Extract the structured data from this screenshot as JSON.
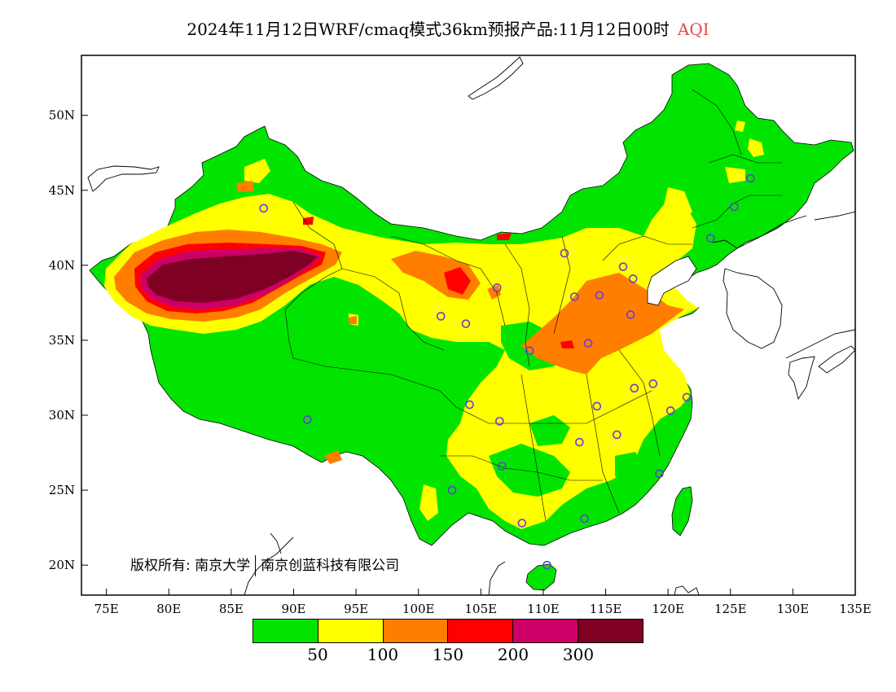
{
  "title": {
    "main": "2024年11月12日WRF/cmaq模式36km预报产品:11月12日00时",
    "variable": "AQI"
  },
  "axes": {
    "y_ticks": [
      "50N",
      "45N",
      "40N",
      "35N",
      "30N",
      "25N",
      "20N"
    ],
    "x_ticks": [
      "75E",
      "80E",
      "85E",
      "90E",
      "95E",
      "100E",
      "105E",
      "110E",
      "115E",
      "120E",
      "125E",
      "130E",
      "135E"
    ],
    "lon_range": [
      73,
      135
    ],
    "lat_range": [
      18,
      54
    ]
  },
  "copyright": {
    "prefix": "版权所有:",
    "org1": "南京大学",
    "org2": "南京创蓝科技有限公司"
  },
  "legend": {
    "colors": [
      "#00e400",
      "#ffff00",
      "#ff7e00",
      "#ff0000",
      "#cc0066",
      "#7e0023"
    ],
    "labels": [
      "50",
      "100",
      "150",
      "200",
      "300"
    ]
  },
  "colors": {
    "good": "#00e400",
    "moderate": "#ffff00",
    "usg": "#ff7e00",
    "unhealthy": "#ff0000",
    "very_unhealthy": "#cc0066",
    "hazardous": "#7e0023",
    "station_marker": "#6a3dd6"
  },
  "stations": [
    {
      "lon": 87.6,
      "lat": 43.8
    },
    {
      "lon": 91.1,
      "lat": 29.7
    },
    {
      "lon": 101.8,
      "lat": 36.6
    },
    {
      "lon": 103.8,
      "lat": 36.1
    },
    {
      "lon": 106.3,
      "lat": 38.5
    },
    {
      "lon": 111.7,
      "lat": 40.8
    },
    {
      "lon": 108.9,
      "lat": 34.3
    },
    {
      "lon": 104.1,
      "lat": 30.7
    },
    {
      "lon": 106.5,
      "lat": 29.6
    },
    {
      "lon": 106.7,
      "lat": 26.6
    },
    {
      "lon": 102.7,
      "lat": 25.0
    },
    {
      "lon": 108.3,
      "lat": 22.8
    },
    {
      "lon": 110.3,
      "lat": 20.0
    },
    {
      "lon": 113.3,
      "lat": 23.1
    },
    {
      "lon": 119.3,
      "lat": 26.1
    },
    {
      "lon": 115.9,
      "lat": 28.7
    },
    {
      "lon": 112.9,
      "lat": 28.2
    },
    {
      "lon": 114.3,
      "lat": 30.6
    },
    {
      "lon": 117.3,
      "lat": 31.8
    },
    {
      "lon": 118.8,
      "lat": 32.1
    },
    {
      "lon": 120.2,
      "lat": 30.3
    },
    {
      "lon": 121.5,
      "lat": 31.2
    },
    {
      "lon": 113.6,
      "lat": 34.8
    },
    {
      "lon": 117.0,
      "lat": 36.7
    },
    {
      "lon": 114.5,
      "lat": 38.0
    },
    {
      "lon": 112.5,
      "lat": 37.9
    },
    {
      "lon": 116.4,
      "lat": 39.9
    },
    {
      "lon": 117.2,
      "lat": 39.1
    },
    {
      "lon": 123.4,
      "lat": 41.8
    },
    {
      "lon": 125.3,
      "lat": 43.9
    },
    {
      "lon": 126.6,
      "lat": 45.8
    }
  ]
}
